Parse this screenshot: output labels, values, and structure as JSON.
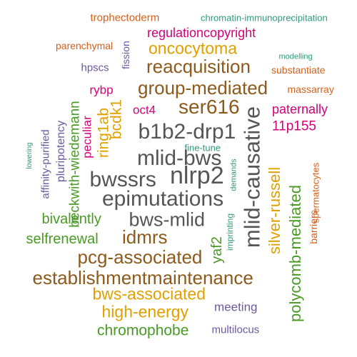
{
  "colors": {
    "gray": "#555555",
    "brown": "#8c5a1c",
    "gold": "#e0a000",
    "green": "#4a9a26",
    "orange": "#d6601a",
    "magenta": "#d4007a",
    "purple": "#6a5aa0",
    "teal": "#2f9a7a"
  },
  "words": [
    {
      "text": "trophectoderm",
      "color": "orange"
    },
    {
      "text": "chromatin-immunoprecipitation",
      "color": "teal"
    },
    {
      "text": "regulationcopyright",
      "color": "magenta"
    },
    {
      "text": "parenchymal",
      "color": "orange"
    },
    {
      "text": "oncocytoma",
      "color": "gold"
    },
    {
      "text": "modelling",
      "color": "teal"
    },
    {
      "text": "hpscs",
      "color": "purple"
    },
    {
      "text": "fission",
      "color": "purple"
    },
    {
      "text": "reacquisition",
      "color": "brown"
    },
    {
      "text": "substantiate",
      "color": "orange"
    },
    {
      "text": "rybp",
      "color": "magenta"
    },
    {
      "text": "group-mediated",
      "color": "brown"
    },
    {
      "text": "massarray",
      "color": "orange"
    },
    {
      "text": "beckwith-wiedemann",
      "color": "green"
    },
    {
      "text": "oct4",
      "color": "magenta"
    },
    {
      "text": "ser616",
      "color": "brown"
    },
    {
      "text": "paternally",
      "color": "magenta"
    },
    {
      "text": "ring1ab",
      "color": "gold"
    },
    {
      "text": "bcdk1",
      "color": "gold"
    },
    {
      "text": "11p155",
      "color": "magenta"
    },
    {
      "text": "b1b2-drp1",
      "color": "gray"
    },
    {
      "text": "mlid-causative",
      "color": "gray"
    },
    {
      "text": "peculiar",
      "color": "magenta"
    },
    {
      "text": "pluripotency",
      "color": "purple"
    },
    {
      "text": "affinity-purified",
      "color": "purple"
    },
    {
      "text": "lowering",
      "color": "teal"
    },
    {
      "text": "fine-tune",
      "color": "teal"
    },
    {
      "text": "mlid-bws",
      "color": "gray"
    },
    {
      "text": "demands",
      "color": "teal"
    },
    {
      "text": "silver-russell",
      "color": "gold"
    },
    {
      "text": "spermatocytes",
      "color": "orange"
    },
    {
      "text": "bwssrs",
      "color": "gray"
    },
    {
      "text": "nlrp2",
      "color": "gray"
    },
    {
      "text": "epimutations",
      "color": "gray"
    },
    {
      "text": "polycomb-mediated",
      "color": "green"
    },
    {
      "text": "barriers",
      "color": "orange"
    },
    {
      "text": "bivalently",
      "color": "green"
    },
    {
      "text": "bws-mlid",
      "color": "gray"
    },
    {
      "text": "imprinting",
      "color": "teal"
    },
    {
      "text": "selfrenewal",
      "color": "green"
    },
    {
      "text": "idmrs",
      "color": "brown"
    },
    {
      "text": "yaf2",
      "color": "green"
    },
    {
      "text": "pcg-associated",
      "color": "brown"
    },
    {
      "text": "establishmentmaintenance",
      "color": "brown"
    },
    {
      "text": "bws-associated",
      "color": "gold"
    },
    {
      "text": "meeting",
      "color": "purple"
    },
    {
      "text": "high-energy",
      "color": "gold"
    },
    {
      "text": "chromophobe",
      "color": "green"
    },
    {
      "text": "multilocus",
      "color": "purple"
    }
  ]
}
